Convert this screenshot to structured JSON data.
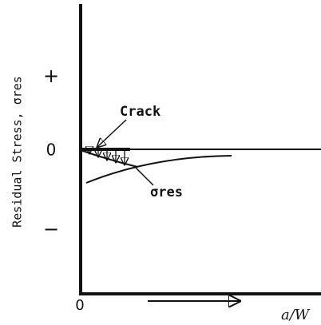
{
  "y_axis_label": "Residual Stress, σres",
  "y_marks": {
    "plus": "+",
    "zero": "0",
    "minus": "−"
  },
  "origin_label": "0",
  "x_axis_label": "a/W",
  "annotations": {
    "crack": "Crack",
    "stress": "σres"
  }
}
